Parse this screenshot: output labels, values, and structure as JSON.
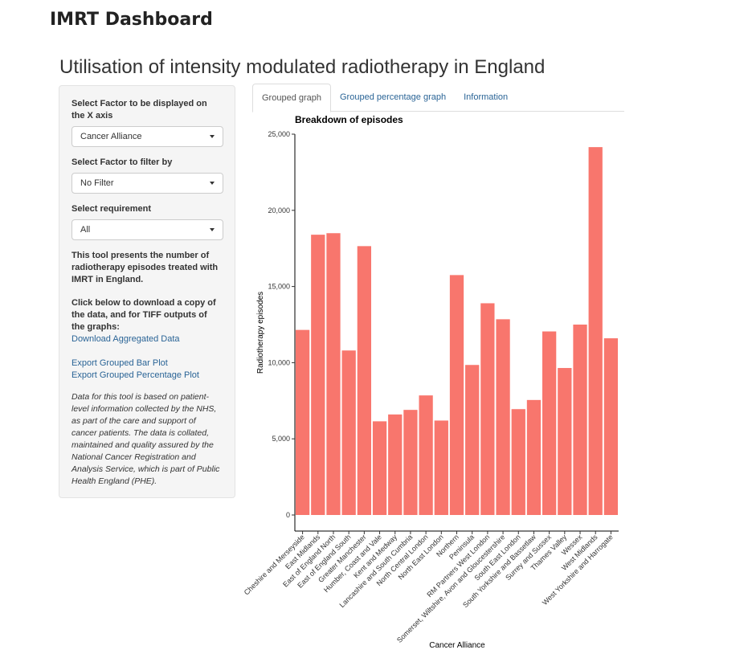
{
  "header": {
    "app_title": "IMRT Dashboard",
    "page_title": "Utilisation of intensity modulated radiotherapy in England"
  },
  "sidebar": {
    "x_axis_label": "Select Factor to be displayed on the X axis",
    "x_axis_value": "Cancer Alliance",
    "filter_label": "Select Factor to filter by",
    "filter_value": "No Filter",
    "requirement_label": "Select requirement",
    "requirement_value": "All",
    "info_text": "This tool presents the number of radiotherapy episodes treated with IMRT in England.",
    "download_text": "Click below to download a copy of the data, and for TIFF outputs of the graphs:",
    "download_link": "Download Aggregated Data",
    "export_bar_link": "Export Grouped Bar Plot",
    "export_pct_link": "Export Grouped Percentage Plot",
    "note": "Data for this tool is based on patient-level information collected by the NHS, as part of the care and support of cancer patients. The data is collated, maintained and quality assured by the National Cancer Registration and Analysis Service, which is part of Public Health England (PHE)."
  },
  "tabs": [
    {
      "label": "Grouped graph",
      "active": true
    },
    {
      "label": "Grouped percentage graph",
      "active": false
    },
    {
      "label": "Information",
      "active": false
    }
  ],
  "colors": {
    "bar": "#F8766D",
    "link": "#2a6496"
  },
  "chart_data": {
    "type": "bar",
    "title": "Breakdown of episodes",
    "xlabel": "Cancer Alliance",
    "ylabel": "Radiotherapy episodes",
    "ylim": [
      0,
      25000
    ],
    "yticks": [
      0,
      5000,
      10000,
      15000,
      20000,
      25000
    ],
    "ytick_labels": [
      "0",
      "5,000",
      "10,000",
      "15,000",
      "20,000",
      "25,000"
    ],
    "categories": [
      "Cheshire and Merseyside",
      "East Midlands",
      "East of England North",
      "East of England South",
      "Greater Manchester",
      "Humber, Coast and Vale",
      "Kent and Medway",
      "Lancashire and South Cumbria",
      "North Central London",
      "North East London",
      "Northern",
      "Peninsula",
      "RM Partners West London",
      "Somerset, Wiltshire, Avon and Gloucestershire",
      "South East London",
      "South Yorkshire and Bassetlaw",
      "Surrey and Sussex",
      "Thames Valley",
      "Wessex",
      "West Midlands",
      "West Yorkshire and Harrogate"
    ],
    "values": [
      12150,
      18400,
      18500,
      10800,
      17650,
      6150,
      6600,
      6900,
      7850,
      6200,
      15750,
      9850,
      13900,
      12850,
      6950,
      7550,
      12050,
      9650,
      12500,
      24150,
      11600
    ],
    "grid": false,
    "legend": "none"
  }
}
